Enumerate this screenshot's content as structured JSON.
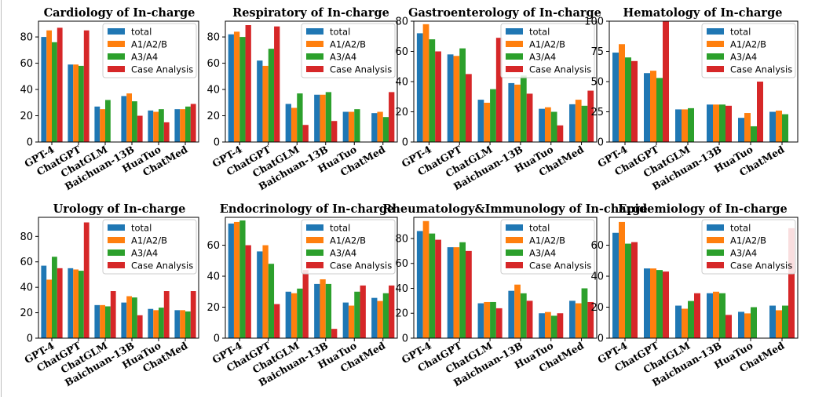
{
  "colors": {
    "total": "#1f77b4",
    "a1a2b": "#ff7f0e",
    "a3a4": "#2ca02c",
    "case": "#d62728"
  },
  "chart_data": [
    {
      "type": "bar",
      "title": "Cardiology of In-charge",
      "categories": [
        "GPT-4",
        "ChatGPT",
        "ChatGLM",
        "Baichuan-13B",
        "HuaTuo",
        "ChatMed"
      ],
      "ylim": [
        0,
        92
      ],
      "yticks": [
        0,
        20,
        40,
        60,
        80
      ],
      "legend": "top-right",
      "series": [
        {
          "name": "total",
          "values": [
            80,
            59,
            27,
            35,
            24,
            25
          ]
        },
        {
          "name": "A1/A2/B",
          "values": [
            85,
            59,
            25,
            37,
            23,
            25
          ]
        },
        {
          "name": "A3/A4",
          "values": [
            76,
            58,
            32,
            31,
            25,
            27
          ]
        },
        {
          "name": "Case Analysis",
          "values": [
            87,
            85,
            0,
            20,
            15,
            29
          ]
        }
      ]
    },
    {
      "type": "bar",
      "title": "Respiratory of In-charge",
      "categories": [
        "GPT-4",
        "ChatGPT",
        "ChatGLM",
        "Baichuan-13B",
        "HuaTuo",
        "ChatMed"
      ],
      "ylim": [
        0,
        92
      ],
      "yticks": [
        0,
        20,
        40,
        60,
        80
      ],
      "legend": "top-right",
      "series": [
        {
          "name": "total",
          "values": [
            82,
            62,
            29,
            36,
            23,
            22
          ]
        },
        {
          "name": "A1/A2/B",
          "values": [
            84,
            58,
            26,
            36,
            23,
            23
          ]
        },
        {
          "name": "A3/A4",
          "values": [
            80,
            71,
            37,
            38,
            25,
            19
          ]
        },
        {
          "name": "Case Analysis",
          "values": [
            89,
            88,
            13,
            16,
            0,
            38
          ]
        }
      ]
    },
    {
      "type": "bar",
      "title": "Gastroenterology of In-charge",
      "categories": [
        "GPT-4",
        "ChatGPT",
        "ChatGLM",
        "Baichuan-13B",
        "HuaTuo",
        "ChatMed"
      ],
      "ylim": [
        0,
        80
      ],
      "yticks": [
        0,
        20,
        40,
        60,
        80
      ],
      "legend": "top-right",
      "series": [
        {
          "name": "total",
          "values": [
            72,
            58,
            28,
            39,
            22,
            25
          ]
        },
        {
          "name": "A1/A2/B",
          "values": [
            78,
            57,
            26,
            38,
            23,
            28
          ]
        },
        {
          "name": "A3/A4",
          "values": [
            68,
            62,
            35,
            44,
            20,
            24
          ]
        },
        {
          "name": "Case Analysis",
          "values": [
            60,
            45,
            69,
            32,
            11,
            34
          ]
        }
      ]
    },
    {
      "type": "bar",
      "title": "Hematology of In-charge",
      "categories": [
        "GPT-4",
        "ChatGPT",
        "ChatGLM",
        "Baichuan-13B",
        "HuaTuo",
        "ChatMed"
      ],
      "ylim": [
        0,
        100
      ],
      "yticks": [
        0,
        25,
        50,
        75,
        100
      ],
      "legend": "top-right",
      "series": [
        {
          "name": "total",
          "values": [
            74,
            57,
            27,
            31,
            20,
            25
          ]
        },
        {
          "name": "A1/A2/B",
          "values": [
            81,
            59,
            27,
            31,
            24,
            26
          ]
        },
        {
          "name": "A3/A4",
          "values": [
            70,
            53,
            28,
            31,
            13,
            23
          ]
        },
        {
          "name": "Case Analysis",
          "values": [
            67,
            100,
            0,
            30,
            50,
            0
          ]
        }
      ]
    },
    {
      "type": "bar",
      "title": "Urology of In-charge",
      "categories": [
        "GPT-4",
        "ChatGPT",
        "ChatGLM",
        "Baichuan-13B",
        "HuaTuo",
        "ChatMed"
      ],
      "ylim": [
        0,
        95
      ],
      "yticks": [
        0,
        20,
        40,
        60,
        80
      ],
      "legend": "top-right",
      "series": [
        {
          "name": "total",
          "values": [
            57,
            55,
            26,
            28,
            23,
            22
          ]
        },
        {
          "name": "A1/A2/B",
          "values": [
            46,
            54,
            26,
            33,
            22,
            22
          ]
        },
        {
          "name": "A3/A4",
          "values": [
            64,
            53,
            25,
            32,
            24,
            21
          ]
        },
        {
          "name": "Case Analysis",
          "values": [
            55,
            91,
            37,
            18,
            37,
            37
          ]
        }
      ]
    },
    {
      "type": "bar",
      "title": "Endocrinology of In-charge",
      "categories": [
        "GPT-4",
        "ChatGPT",
        "ChatGLM",
        "Baichuan-13B",
        "HuaTuo",
        "ChatMed"
      ],
      "ylim": [
        0,
        78
      ],
      "yticks": [
        0,
        20,
        40,
        60
      ],
      "legend": "top-right",
      "series": [
        {
          "name": "total",
          "values": [
            74,
            56,
            30,
            35,
            23,
            26
          ]
        },
        {
          "name": "A1/A2/B",
          "values": [
            75,
            60,
            29,
            38,
            21,
            24
          ]
        },
        {
          "name": "A3/A4",
          "values": [
            76,
            48,
            32,
            35,
            30,
            29
          ]
        },
        {
          "name": "Case Analysis",
          "values": [
            60,
            22,
            44,
            6,
            34,
            34
          ]
        }
      ]
    },
    {
      "type": "bar",
      "title": "Rheumatology&Immunology of In-charge",
      "categories": [
        "GPT-4",
        "ChatGPT",
        "ChatGLM",
        "Baichuan-13B",
        "HuaTuo",
        "ChatMed"
      ],
      "ylim": [
        0,
        97
      ],
      "yticks": [
        0,
        20,
        40,
        60,
        80
      ],
      "legend": "top-right",
      "series": [
        {
          "name": "total",
          "values": [
            86,
            73,
            28,
            38,
            20,
            30
          ]
        },
        {
          "name": "A1/A2/B",
          "values": [
            94,
            73,
            29,
            43,
            21,
            28
          ]
        },
        {
          "name": "A3/A4",
          "values": [
            84,
            77,
            29,
            36,
            18,
            40
          ]
        },
        {
          "name": "Case Analysis",
          "values": [
            79,
            70,
            24,
            30,
            20,
            29
          ]
        }
      ]
    },
    {
      "type": "bar",
      "title": "Epidemiology of In-charge",
      "categories": [
        "GPT-4",
        "ChatGPT",
        "ChatGLM",
        "Baichuan-13B",
        "HuaTuo",
        "ChatMed"
      ],
      "ylim": [
        0,
        78
      ],
      "yticks": [
        0,
        20,
        40,
        60
      ],
      "legend": "top-right",
      "series": [
        {
          "name": "total",
          "values": [
            68,
            45,
            21,
            29,
            17,
            21
          ]
        },
        {
          "name": "A1/A2/B",
          "values": [
            75,
            45,
            19,
            30,
            16,
            18
          ]
        },
        {
          "name": "A3/A4",
          "values": [
            61,
            44,
            24,
            29,
            20,
            21
          ]
        },
        {
          "name": "Case Analysis",
          "values": [
            62,
            43,
            29,
            15,
            0,
            71
          ]
        }
      ]
    }
  ]
}
